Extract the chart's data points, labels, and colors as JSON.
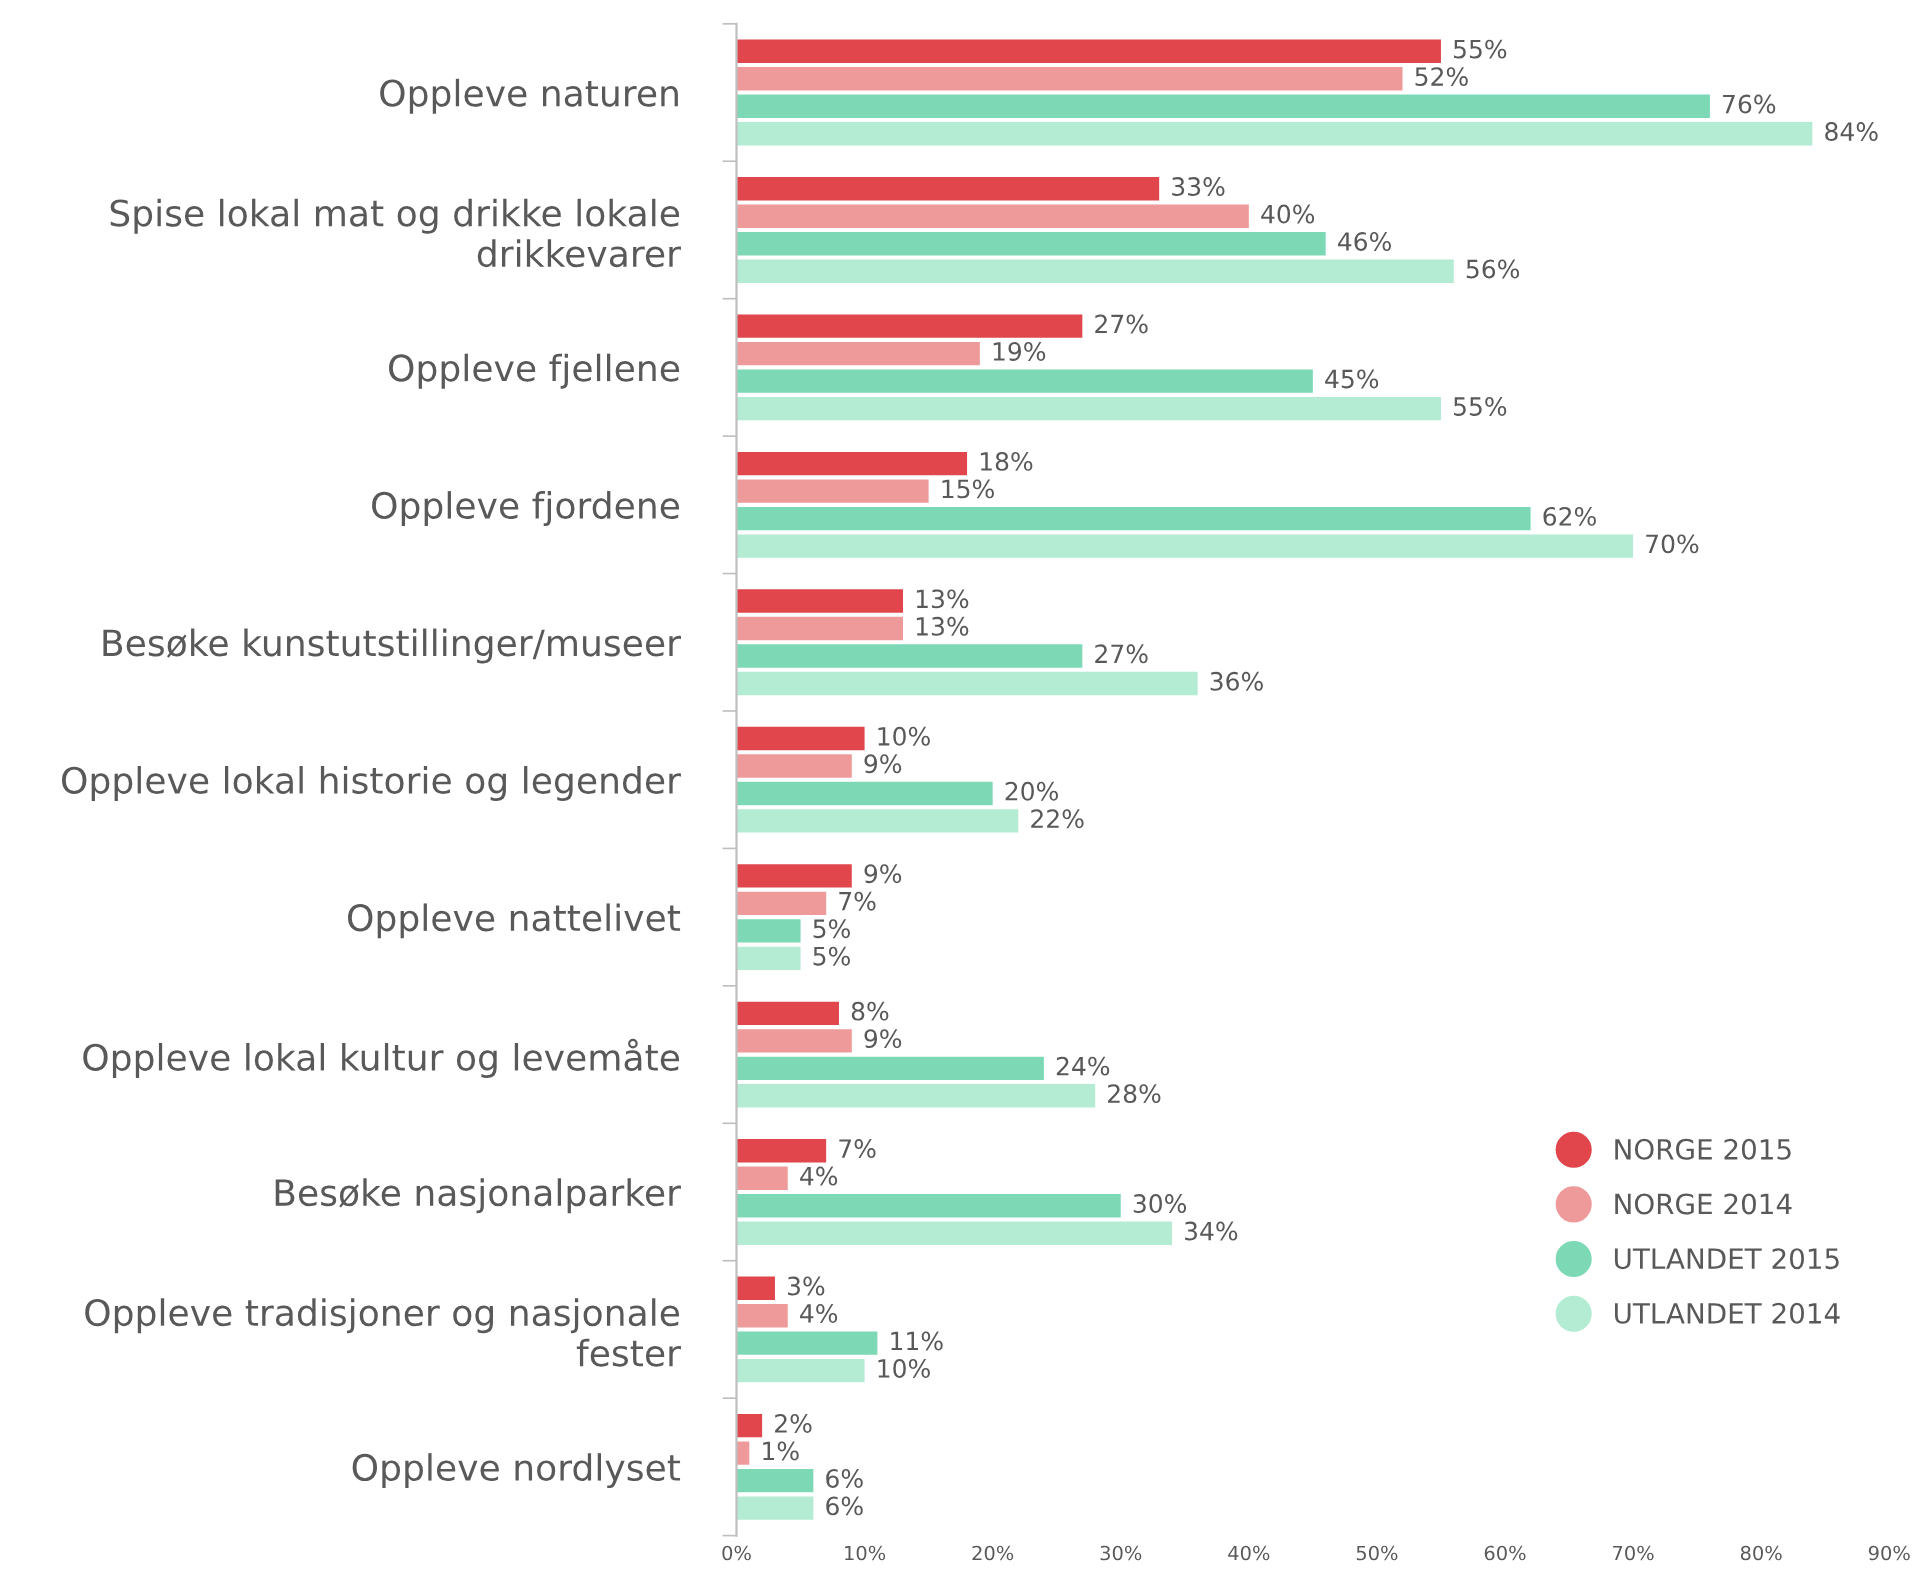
{
  "chart_data": {
    "type": "bar",
    "orientation": "horizontal",
    "categories": [
      "Oppleve naturen",
      "Spise lokal mat og drikke lokale\ndrikkevarer",
      "Oppleve fjellene",
      "Oppleve fjordene",
      "Besøke kunstutstillinger/museer",
      "Oppleve lokal historie og legender",
      "Oppleve nattelivet",
      "Oppleve lokal kultur og levemåte",
      "Besøke nasjonalparker",
      "Oppleve tradisjoner og nasjonale\nfester",
      "Oppleve nordlyset"
    ],
    "series": [
      {
        "name": "NORGE 2015",
        "color": "#e0464b",
        "values": [
          55,
          33,
          27,
          18,
          13,
          10,
          9,
          8,
          7,
          3,
          2
        ],
        "value_labels": [
          "55%",
          "33%",
          "27%",
          "18%",
          "13%",
          "10%",
          "9%",
          "8%",
          "7%",
          "3%",
          "2%"
        ]
      },
      {
        "name": "NORGE 2014",
        "color": "#ee9a9a",
        "values": [
          52,
          40,
          19,
          15,
          13,
          9,
          7,
          9,
          4,
          4,
          1
        ],
        "value_labels": [
          "52%",
          "40%",
          "19%",
          "15%",
          "13%",
          "9%",
          "7%",
          "9%",
          "4%",
          "4%",
          "1%"
        ]
      },
      {
        "name": "UTLANDET 2015",
        "color": "#7dd9b5",
        "values": [
          76,
          46,
          45,
          62,
          27,
          20,
          5,
          24,
          30,
          11,
          6
        ],
        "value_labels": [
          "76%",
          "46%",
          "45%",
          "62%",
          "27%",
          "20%",
          "5%",
          "24%",
          "30%",
          "11%",
          "6%"
        ]
      },
      {
        "name": "UTLANDET 2014",
        "color": "#b3ebd3",
        "values": [
          84,
          56,
          55,
          70,
          36,
          22,
          5,
          28,
          34,
          10,
          6
        ],
        "value_labels": [
          "84%",
          "56%",
          "55%",
          "70%",
          "36%",
          "22%",
          "5%",
          "28%",
          "34%",
          "10%",
          "6%"
        ]
      }
    ],
    "xlim": [
      0,
      90
    ],
    "xticks": [
      {
        "value": 0,
        "label": "0%"
      },
      {
        "value": 10,
        "label": "10%"
      },
      {
        "value": 20,
        "label": "20%"
      },
      {
        "value": 30,
        "label": "30%"
      },
      {
        "value": 40,
        "label": "40%"
      },
      {
        "value": 50,
        "label": "50%"
      },
      {
        "value": 60,
        "label": "60%"
      },
      {
        "value": 70,
        "label": "70%"
      },
      {
        "value": 80,
        "label": "80%"
      },
      {
        "value": 90,
        "label": "90%"
      }
    ],
    "grid": false,
    "legend": "bottom right",
    "marker": "circle"
  }
}
